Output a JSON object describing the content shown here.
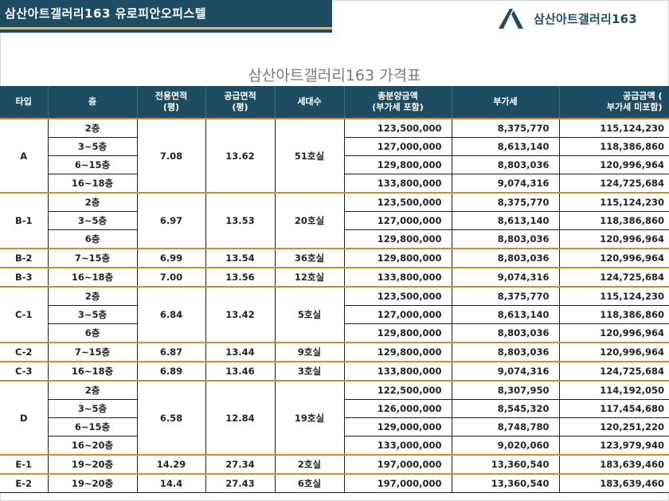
{
  "header": {
    "banner_title": "삼산아트갤러리163  유로피안오피스텔",
    "brand_name": "삼산아트갤러리163"
  },
  "page_title": "삼산아트갤러리163 가격표",
  "colors": {
    "primary": "#1e4c62",
    "accent_stripe": "#c9b88a",
    "group_divider": "#d88a2a"
  },
  "table": {
    "columns": {
      "type": "타입",
      "floor": "층",
      "exclusive_area": "전용면적\n(평)",
      "supply_area": "공급면적\n(평)",
      "households": "세대수",
      "total_price": "총분양금액\n(부가세 포함)",
      "vat": "부가세",
      "supply_price": "공급금액  (\n부가세 미포함)"
    },
    "groups": [
      {
        "type": "A",
        "exclusive_area": "7.08",
        "supply_area": "13.62",
        "households": "51호실",
        "rows": [
          {
            "floor": "2층",
            "total": "123,500,000",
            "vat": "8,375,770",
            "supply": "115,124,230"
          },
          {
            "floor": "3~5층",
            "total": "127,000,000",
            "vat": "8,613,140",
            "supply": "118,386,860"
          },
          {
            "floor": "6~15층",
            "total": "129,800,000",
            "vat": "8,803,036",
            "supply": "120,996,964"
          },
          {
            "floor": "16~18층",
            "total": "133,800,000",
            "vat": "9,074,316",
            "supply": "124,725,684"
          }
        ]
      },
      {
        "type": "B-1",
        "exclusive_area": "6.97",
        "supply_area": "13.53",
        "households": "20호실",
        "rows": [
          {
            "floor": "2층",
            "total": "123,500,000",
            "vat": "8,375,770",
            "supply": "115,124,230"
          },
          {
            "floor": "3~5층",
            "total": "127,000,000",
            "vat": "8,613,140",
            "supply": "118,386,860"
          },
          {
            "floor": "6층",
            "total": "129,800,000",
            "vat": "8,803,036",
            "supply": "120,996,964"
          }
        ]
      },
      {
        "type": "B-2",
        "exclusive_area": "6.99",
        "supply_area": "13.54",
        "households": "36호실",
        "rows": [
          {
            "floor": "7~15층",
            "total": "129,800,000",
            "vat": "8,803,036",
            "supply": "120,996,964"
          }
        ]
      },
      {
        "type": "B-3",
        "exclusive_area": "7.00",
        "supply_area": "13.56",
        "households": "12호실",
        "rows": [
          {
            "floor": "16~18층",
            "total": "133,800,000",
            "vat": "9,074,316",
            "supply": "124,725,684"
          }
        ]
      },
      {
        "type": "C-1",
        "exclusive_area": "6.84",
        "supply_area": "13.42",
        "households": "5호실",
        "rows": [
          {
            "floor": "2층",
            "total": "123,500,000",
            "vat": "8,375,770",
            "supply": "115,124,230"
          },
          {
            "floor": "3~5층",
            "total": "127,000,000",
            "vat": "8,613,140",
            "supply": "118,386,860"
          },
          {
            "floor": "6층",
            "total": "129,800,000",
            "vat": "8,803,036",
            "supply": "120,996,964"
          }
        ]
      },
      {
        "type": "C-2",
        "exclusive_area": "6.87",
        "supply_area": "13.44",
        "households": "9호실",
        "rows": [
          {
            "floor": "7~15층",
            "total": "129,800,000",
            "vat": "8,803,036",
            "supply": "120,996,964"
          }
        ]
      },
      {
        "type": "C-3",
        "exclusive_area": "6.89",
        "supply_area": "13.46",
        "households": "3호실",
        "rows": [
          {
            "floor": "16~18층",
            "total": "133,800,000",
            "vat": "9,074,316",
            "supply": "124,725,684"
          }
        ]
      },
      {
        "type": "D",
        "exclusive_area": "6.58",
        "supply_area": "12.84",
        "households": "19호실",
        "rows": [
          {
            "floor": "2층",
            "total": "122,500,000",
            "vat": "8,307,950",
            "supply": "114,192,050"
          },
          {
            "floor": "3~5층",
            "total": "126,000,000",
            "vat": "8,545,320",
            "supply": "117,454,680"
          },
          {
            "floor": "6~15층",
            "total": "129,000,000",
            "vat": "8,748,780",
            "supply": "120,251,220"
          },
          {
            "floor": "16~20층",
            "total": "133,000,000",
            "vat": "9,020,060",
            "supply": "123,979,940"
          }
        ]
      },
      {
        "type": "E-1",
        "exclusive_area": "14.29",
        "supply_area": "27.34",
        "households": "2호실",
        "rows": [
          {
            "floor": "19~20층",
            "total": "197,000,000",
            "vat": "13,360,540",
            "supply": "183,639,460"
          }
        ]
      },
      {
        "type": "E-2",
        "exclusive_area": "14.4",
        "supply_area": "27.43",
        "households": "6호실",
        "rows": [
          {
            "floor": "19~20층",
            "total": "197,000,000",
            "vat": "13,360,540",
            "supply": "183,639,460"
          }
        ]
      }
    ]
  }
}
